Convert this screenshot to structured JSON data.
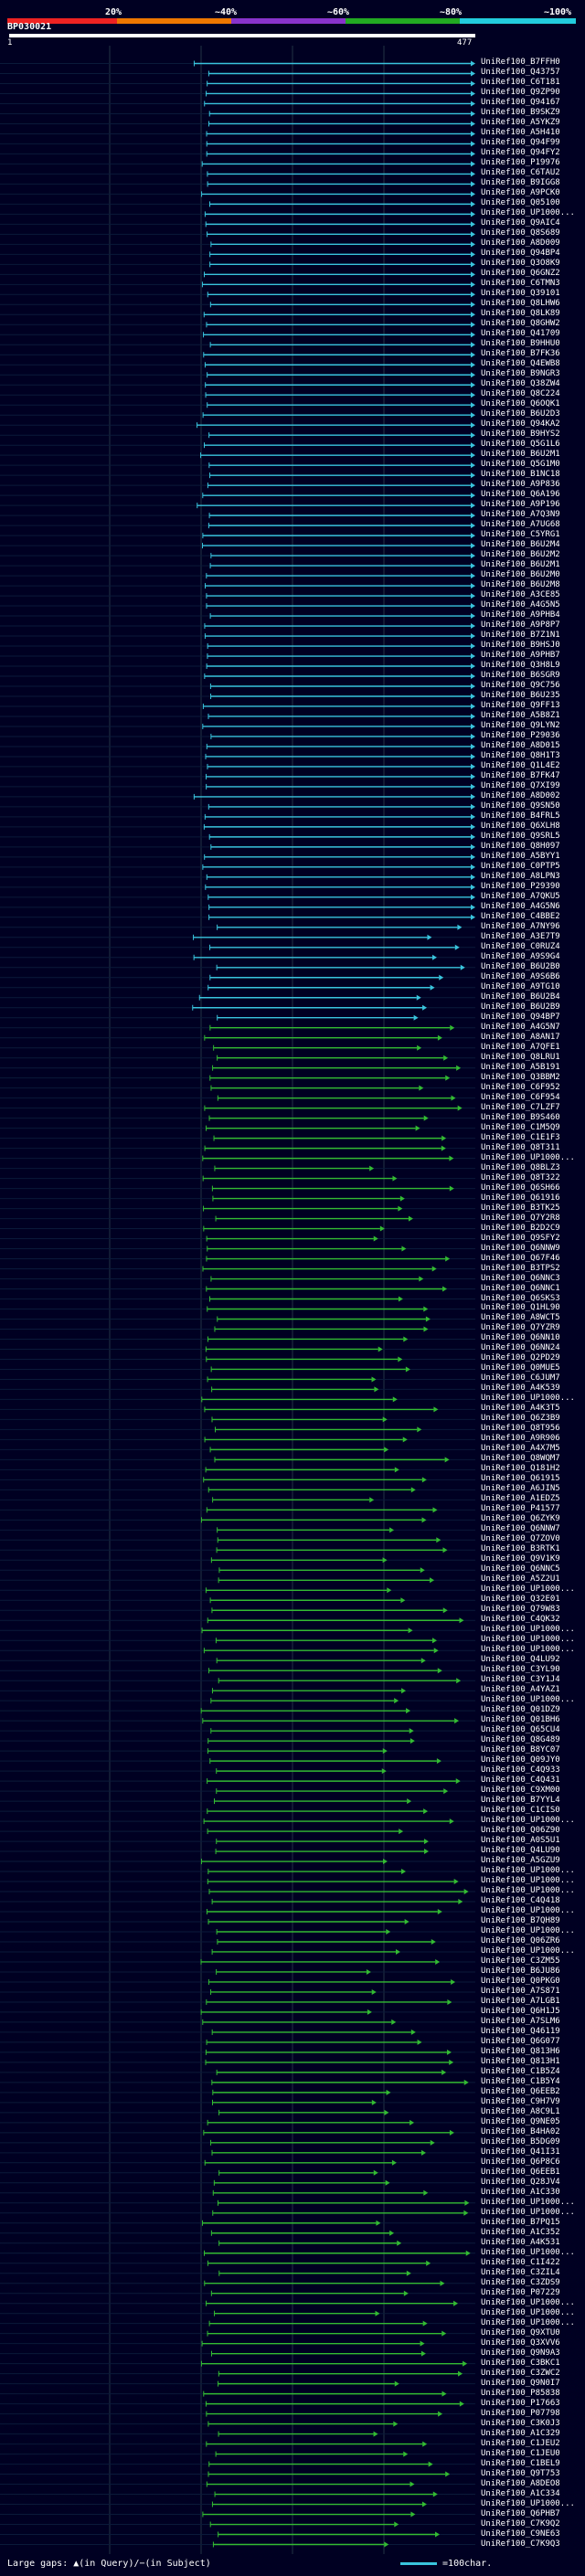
{
  "header": {
    "ticks": [
      "20%",
      "~40%",
      "~60%",
      "~80%",
      "~100%"
    ],
    "bands": [
      "#ee2222",
      "#ee7700",
      "#8833cc",
      "#22aa22",
      "#22ccdd"
    ]
  },
  "query": {
    "name": "BP030021",
    "start": "1",
    "end": "477"
  },
  "hits": [
    "UniRef100_B7FFH0",
    "UniRef100_Q43757",
    "UniRef100_C6T181",
    "UniRef100_Q9ZP90",
    "UniRef100_Q94167",
    "UniRef100_B9SKZ9",
    "UniRef100_A5YKZ9",
    "UniRef100_A5H410",
    "UniRef100_Q94F99",
    "UniRef100_Q94FY2",
    "UniRef100_P19976",
    "UniRef100_C6TAU2",
    "UniRef100_B9IGG8",
    "UniRef100_A9PCK0",
    "UniRef100_Q05100",
    "UniRef100_UP1000...",
    "UniRef100_Q9AIC4",
    "UniRef100_Q8S689",
    "UniRef100_A8D009",
    "UniRef100_Q94BP4",
    "UniRef100_Q3O8K9",
    "UniRef100_Q6GNZ2",
    "UniRef100_C6TMN3",
    "UniRef100_Q39101",
    "UniRef100_Q8LHW6",
    "UniRef100_Q8LK89",
    "UniRef100_Q8GHW2",
    "UniRef100_Q41709",
    "UniRef100_B9HHU0",
    "UniRef100_B7FK36",
    "UniRef100_Q4EWB8",
    "UniRef100_B9NGR3",
    "UniRef100_Q38ZW4",
    "UniRef100_Q8C224",
    "UniRef100_Q6OQK1",
    "UniRef100_B6U2D3",
    "UniRef100_Q94KA2",
    "UniRef100_B9HYS2",
    "UniRef100_Q5G1L6",
    "UniRef100_B6U2M1",
    "UniRef100_Q5G1M0",
    "UniRef100_B1NC18",
    "UniRef100_A9P836",
    "UniRef100_Q6A196",
    "UniRef100_A9P196",
    "UniRef100_A7Q3N9",
    "UniRef100_A7UG68",
    "UniRef100_C5YRG1",
    "UniRef100_B6U2M4",
    "UniRef100_B6U2M2",
    "UniRef100_B6U2M1",
    "UniRef100_B6U2M0",
    "UniRef100_B6U2M8",
    "UniRef100_A3CE85",
    "UniRef100_A4G5N5",
    "UniRef100_A9PHB4",
    "UniRef100_A9P8P7",
    "UniRef100_B7Z1N1",
    "UniRef100_B9HSJ0",
    "UniRef100_A9PHB7",
    "UniRef100_Q3H8L9",
    "UniRef100_B6SGR9",
    "UniRef100_Q9C756",
    "UniRef100_B6U235",
    "UniRef100_Q9FF13",
    "UniRef100_A5B8Z1",
    "UniRef100_Q9LYN2",
    "UniRef100_P29036",
    "UniRef100_A8D015",
    "UniRef100_Q8H1T3",
    "UniRef100_Q1L4E2",
    "UniRef100_B7FK47",
    "UniRef100_Q7XI99",
    "UniRef100_A8D002",
    "UniRef100_Q9SN50",
    "UniRef100_B4FRL5",
    "UniRef100_Q6XLH8",
    "UniRef100_Q9SRL5",
    "UniRef100_Q8H097",
    "UniRef100_A5BYY1",
    "UniRef100_C0PTP5",
    "UniRef100_A8LPN3",
    "UniRef100_P29390",
    "UniRef100_A7QKU5",
    "UniRef100_A4G5N6",
    "UniRef100_C4BBE2",
    "UniRef100_A7NY96",
    "UniRef100_A3E7T9",
    "UniRef100_C0RUZ4",
    "UniRef100_A9S9G4",
    "UniRef100_B6U2B0",
    "UniRef100_A9S6B6",
    "UniRef100_A9TG10",
    "UniRef100_B6U2B4",
    "UniRef100_B6U2B9",
    "UniRef100_Q94BP7",
    "UniRef100_A4G5N7",
    "UniRef100_A8AN17",
    "UniRef100_A7QFE1",
    "UniRef100_Q8LRU1",
    "UniRef100_A5B191",
    "UniRef100_Q3BBM2",
    "UniRef100_C6F952",
    "UniRef100_C6F954",
    "UniRef100_C7LZF7",
    "UniRef100_B9S460",
    "UniRef100_C1M5Q9",
    "UniRef100_C1E1F3",
    "UniRef100_Q8T311",
    "UniRef100_UP1000...",
    "UniRef100_Q8BLZ3",
    "UniRef100_Q8T322",
    "UniRef100_Q6SH66",
    "UniRef100_Q61916",
    "UniRef100_B3TK25",
    "UniRef100_Q7Y2R8",
    "UniRef100_B2D2C9",
    "UniRef100_Q9SFY2",
    "UniRef100_Q6NNW9",
    "UniRef100_Q67F46",
    "UniRef100_B3TPS2",
    "UniRef100_Q6NNC3",
    "UniRef100_Q6NNC1",
    "UniRef100_Q6SKS3",
    "UniRef100_Q1HL90",
    "UniRef100_A8WCT5",
    "UniRef100_Q7YZR9",
    "UniRef100_Q6NN10",
    "UniRef100_Q6NN24",
    "UniRef100_Q2PD29",
    "UniRef100_Q0MUE5",
    "UniRef100_C6JUM7",
    "UniRef100_A4K539",
    "UniRef100_UP1000...",
    "UniRef100_A4K3T5",
    "UniRef100_Q6Z3B9",
    "UniRef100_Q8T956",
    "UniRef100_A9R906",
    "UniRef100_A4X7M5",
    "UniRef100_Q8WQM7",
    "UniRef100_Q181H2",
    "UniRef100_Q61915",
    "UniRef100_A6JIN5",
    "UniRef100_A1EDZ5",
    "UniRef100_P41577",
    "UniRef100_Q6ZYK9",
    "UniRef100_Q6NNW7",
    "UniRef100_Q7ZOV0",
    "UniRef100_B3RTK1",
    "UniRef100_Q9V1K9",
    "UniRef100_Q6NNC5",
    "UniRef100_A5Z2U1",
    "UniRef100_UP1000...",
    "UniRef100_Q32E01",
    "UniRef100_Q79W83",
    "UniRef100_C4QK32",
    "UniRef100_UP1000...",
    "UniRef100_UP1000...",
    "UniRef100_UP1000...",
    "UniRef100_Q4LU92",
    "UniRef100_C3YL90",
    "UniRef100_C3Y1J4",
    "UniRef100_A4YAZ1",
    "UniRef100_UP1000...",
    "UniRef100_Q01DZ9",
    "UniRef100_Q01BH6",
    "UniRef100_Q65CU4",
    "UniRef100_Q8G489",
    "UniRef100_B8YC07",
    "UniRef100_Q09JY0",
    "UniRef100_C4Q933",
    "UniRef100_C4Q431",
    "UniRef100_C9XM00",
    "UniRef100_B7YYL4",
    "UniRef100_C1CIS0",
    "UniRef100_UP1000...",
    "UniRef100_Q06Z90",
    "UniRef100_A0S5U1",
    "UniRef100_Q4LU90",
    "UniRef100_A5GZU9",
    "UniRef100_UP1000...",
    "UniRef100_UP1000...",
    "UniRef100_UP1000...",
    "UniRef100_C4Q418",
    "UniRef100_UP1000...",
    "UniRef100_B7QH89",
    "UniRef100_UP1000...",
    "UniRef100_Q06ZR6",
    "UniRef100_UP1000...",
    "UniRef100_C3ZM55",
    "UniRef100_B6JU86",
    "UniRef100_Q0PKG0",
    "UniRef100_A7S871",
    "UniRef100_A7LGB1",
    "UniRef100_Q6H1J5",
    "UniRef100_A7SLM6",
    "UniRef100_Q46119",
    "UniRef100_Q6G077",
    "UniRef100_Q813H6",
    "UniRef100_Q813H1",
    "UniRef100_C1B5Z4",
    "UniRef100_C1B5Y4",
    "UniRef100_Q6EEB2",
    "UniRef100_C9H7V9",
    "UniRef100_A8C9L1",
    "UniRef100_Q9NE05",
    "UniRef100_B4HA02",
    "UniRef100_B5DG09",
    "UniRef100_Q41I31",
    "UniRef100_Q6P8C6",
    "UniRef100_Q6EEB1",
    "UniRef100_Q28JV4",
    "UniRef100_A1C330",
    "UniRef100_UP1000...",
    "UniRef100_UP1000...",
    "UniRef100_B7PQ15",
    "UniRef100_A1C352",
    "UniRef100_A4K531",
    "UniRef100_UP1000...",
    "UniRef100_C1I422",
    "UniRef100_C3ZIL4",
    "UniRef100_C3ZDS9",
    "UniRef100_P07229",
    "UniRef100_UP1000...",
    "UniRef100_UP1000...",
    "UniRef100_UP1000...",
    "UniRef100_Q9XTU0",
    "UniRef100_Q3XVV6",
    "UniRef100_Q9N9A3",
    "UniRef100_C3BKC1",
    "UniRef100_C3ZWC2",
    "UniRef100_Q9N0I7",
    "UniRef100_P85838",
    "UniRef100_P17663",
    "UniRef100_P07798",
    "UniRef100_C3K0J3",
    "UniRef100_A1C329",
    "UniRef100_C1JEU2",
    "UniRef100_C1JEU0",
    "UniRef100_C1BEL9",
    "UniRef100_Q9T753",
    "UniRef100_A8DEO8",
    "UniRef100_A1C334",
    "UniRef100_UP1000...",
    "UniRef100_Q6PHB7",
    "UniRef100_C7K9Q2",
    "UniRef100_C9NE63",
    "UniRef100_C7K9Q3"
  ],
  "footer": {
    "gaps_text": "Large gaps: ▲(in Query)/−(in Subject)",
    "scale_text": "=100char."
  }
}
